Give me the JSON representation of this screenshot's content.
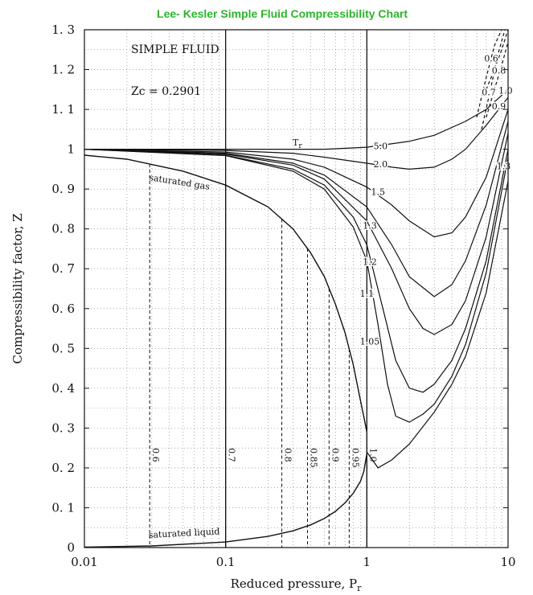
{
  "chart_data": {
    "type": "line",
    "title": "Lee- Kesler Simple Fluid Compressibility Chart",
    "xlabel": "Reduced pressure, P",
    "xlabel_subscript": "r",
    "ylabel": "Compressibility factor, Z",
    "xscale": "log",
    "xlim": [
      0.01,
      10
    ],
    "ylim": [
      0,
      1.3
    ],
    "x_ticks": [
      0.01,
      0.1,
      1,
      10
    ],
    "x_tick_labels": [
      "0.01",
      "0.1",
      "1",
      "10"
    ],
    "y_ticks": [
      0,
      0.1,
      0.2,
      0.3,
      0.4,
      0.5,
      0.6,
      0.7,
      0.8,
      0.9,
      1,
      1.1,
      1.2,
      1.3
    ],
    "y_tick_labels": [
      "0",
      "0. 1",
      "0. 2",
      "0. 3",
      "0. 4",
      "0. 5",
      "0. 6",
      "0. 7",
      "0. 8",
      "0. 9",
      "1",
      "1. 1",
      "1. 2",
      "1. 3"
    ],
    "grid": true,
    "annotations": {
      "fluid": "SIMPLE FLUID",
      "zc": "Zc = 0.2901",
      "tr_symbol": "T",
      "tr_subscript": "r",
      "saturated_gas": "saturated gas",
      "saturated_liquid": "saturated liquid"
    },
    "saturation_gas": {
      "x": [
        0.01,
        0.02,
        0.05,
        0.1,
        0.2,
        0.3,
        0.4,
        0.5,
        0.6,
        0.7,
        0.8,
        0.9,
        0.95,
        1.0
      ],
      "y": [
        0.985,
        0.975,
        0.945,
        0.91,
        0.855,
        0.8,
        0.74,
        0.68,
        0.61,
        0.54,
        0.46,
        0.37,
        0.33,
        0.29
      ]
    },
    "saturation_liquid": {
      "x": [
        0.01,
        0.03,
        0.1,
        0.2,
        0.3,
        0.4,
        0.5,
        0.6,
        0.7,
        0.8,
        0.9,
        0.95,
        1.0
      ],
      "y": [
        0.001,
        0.004,
        0.014,
        0.028,
        0.042,
        0.057,
        0.073,
        0.091,
        0.112,
        0.136,
        0.166,
        0.19,
        0.235
      ]
    },
    "isotherm_verticals": [
      {
        "tr": "0.6",
        "psat": 0.029
      },
      {
        "tr": "0.7",
        "psat": 0.1
      },
      {
        "tr": "0.8",
        "psat": 0.25
      },
      {
        "tr": "0.85",
        "psat": 0.38
      },
      {
        "tr": "0.9",
        "psat": 0.54
      },
      {
        "tr": "0.95",
        "psat": 0.75
      },
      {
        "tr": "1.0",
        "psat": 1.0
      }
    ],
    "series": [
      {
        "name": "5.0",
        "style": "solid",
        "x": [
          0.01,
          0.1,
          0.5,
          1,
          2,
          3,
          5,
          7,
          10
        ],
        "y": [
          1.0,
          1.0,
          1.0,
          1.005,
          1.02,
          1.035,
          1.07,
          1.1,
          1.15
        ]
      },
      {
        "name": "2.0",
        "style": "solid",
        "x": [
          0.01,
          0.1,
          0.3,
          0.5,
          1,
          1.5,
          2,
          3,
          4,
          5,
          7,
          10
        ],
        "y": [
          1.0,
          0.997,
          0.99,
          0.98,
          0.965,
          0.955,
          0.95,
          0.955,
          0.975,
          1.0,
          1.06,
          1.13
        ]
      },
      {
        "name": "1.5",
        "style": "solid",
        "x": [
          0.01,
          0.1,
          0.3,
          0.5,
          1,
          1.5,
          2,
          3,
          4,
          5,
          7,
          10
        ],
        "y": [
          1.0,
          0.993,
          0.975,
          0.955,
          0.905,
          0.86,
          0.82,
          0.78,
          0.79,
          0.83,
          0.93,
          1.1
        ]
      },
      {
        "name": "1.3",
        "style": "solid",
        "x": [
          0.01,
          0.1,
          0.3,
          0.5,
          1,
          1.5,
          2,
          3,
          4,
          5,
          7,
          10
        ],
        "y": [
          1.0,
          0.99,
          0.965,
          0.935,
          0.855,
          0.76,
          0.68,
          0.63,
          0.66,
          0.72,
          0.86,
          1.07
        ]
      },
      {
        "name": "1.2",
        "style": "solid",
        "x": [
          0.01,
          0.1,
          0.3,
          0.5,
          1,
          1.5,
          2,
          2.5,
          3,
          4,
          5,
          7,
          10
        ],
        "y": [
          1.0,
          0.988,
          0.96,
          0.925,
          0.82,
          0.7,
          0.6,
          0.55,
          0.535,
          0.56,
          0.62,
          0.78,
          1.04
        ]
      },
      {
        "name": "1.1",
        "style": "solid",
        "x": [
          0.01,
          0.1,
          0.3,
          0.5,
          0.8,
          1,
          1.3,
          1.6,
          2,
          2.5,
          3,
          4,
          5,
          7,
          10
        ],
        "y": [
          1.0,
          0.985,
          0.95,
          0.91,
          0.83,
          0.76,
          0.6,
          0.47,
          0.4,
          0.39,
          0.41,
          0.47,
          0.55,
          0.72,
          1.0
        ]
      },
      {
        "name": "1.05",
        "style": "solid",
        "x": [
          0.01,
          0.1,
          0.3,
          0.5,
          0.8,
          1,
          1.2,
          1.4,
          1.6,
          2,
          2.5,
          3,
          4,
          5,
          7,
          10
        ],
        "y": [
          1.0,
          0.984,
          0.945,
          0.9,
          0.805,
          0.72,
          0.56,
          0.41,
          0.33,
          0.315,
          0.335,
          0.36,
          0.43,
          0.51,
          0.69,
          0.98
        ]
      },
      {
        "name": "1.0",
        "style": "solid",
        "x": [
          1.0,
          1.2,
          1.5,
          2,
          3,
          4,
          5,
          7,
          10
        ],
        "y": [
          0.24,
          0.2,
          0.22,
          0.26,
          0.34,
          0.41,
          0.48,
          0.64,
          0.92
        ]
      },
      {
        "name": "0.9",
        "style": "dashed",
        "x": [
          7,
          8,
          9,
          10
        ],
        "y": [
          1.08,
          1.15,
          1.21,
          1.27
        ]
      },
      {
        "name": "0.8",
        "style": "dashed",
        "x": [
          7,
          8,
          9,
          10
        ],
        "y": [
          1.15,
          1.2,
          1.25,
          1.3
        ]
      },
      {
        "name": "0.7",
        "style": "dashed",
        "x": [
          6.5,
          7.5,
          8.5,
          9.5
        ],
        "y": [
          1.05,
          1.15,
          1.24,
          1.3
        ]
      },
      {
        "name": "0.6",
        "style": "dashed",
        "x": [
          6,
          7,
          8,
          9
        ],
        "y": [
          1.08,
          1.18,
          1.26,
          1.3
        ]
      }
    ],
    "curve_labels": [
      {
        "text": "5.0",
        "x": 1.25,
        "y": 1.0
      },
      {
        "text": "2.0",
        "x": 1.25,
        "y": 0.955
      },
      {
        "text": "1.5",
        "x": 1.2,
        "y": 0.885
      },
      {
        "text": "1.3",
        "x": 1.05,
        "y": 0.8
      },
      {
        "text": "1.2",
        "x": 1.05,
        "y": 0.71
      },
      {
        "text": "1.1",
        "x": 1.0,
        "y": 0.63
      },
      {
        "text": "1.05",
        "x": 1.05,
        "y": 0.51
      },
      {
        "text": "0.6",
        "x": 7.6,
        "y": 1.22
      },
      {
        "text": "0.7",
        "x": 7.3,
        "y": 1.135
      },
      {
        "text": "0.8",
        "x": 8.6,
        "y": 1.19
      },
      {
        "text": "0.9",
        "x": 8.6,
        "y": 1.1
      },
      {
        "text": "1.0",
        "x": 9.6,
        "y": 1.14
      },
      {
        "text": "1.3",
        "x": 9.3,
        "y": 0.95
      }
    ]
  }
}
